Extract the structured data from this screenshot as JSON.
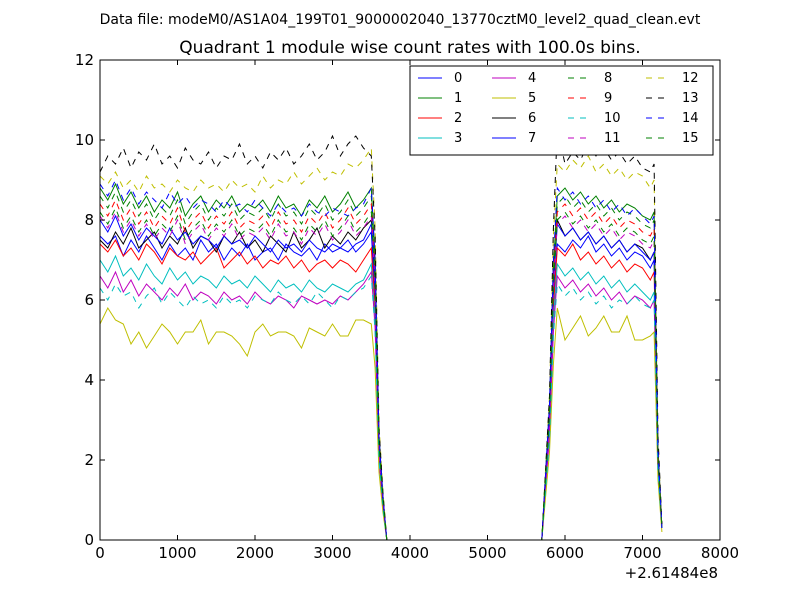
{
  "figure": {
    "suptitle": "Data file: modeM0/AS1A04_199T01_9000002040_13770cztM0_level2_quad_clean.evt"
  },
  "chart_data": {
    "type": "line",
    "title": "Quadrant 1 module wise count rates with 100.0s bins.",
    "xlabel": "",
    "ylabel": "",
    "x_offset_label": "+2.61484e8",
    "xlim": [
      0,
      8000
    ],
    "ylim": [
      0,
      12
    ],
    "xticks": [
      0,
      1000,
      2000,
      3000,
      4000,
      5000,
      6000,
      7000,
      8000
    ],
    "yticks": [
      0,
      2,
      4,
      6,
      8,
      10,
      12
    ],
    "grid": false,
    "legend_position": "top-right",
    "legend_columns": 4,
    "x": [
      0,
      100,
      200,
      300,
      400,
      500,
      600,
      700,
      800,
      900,
      1000,
      1100,
      1200,
      1300,
      1400,
      1500,
      1600,
      1700,
      1800,
      1900,
      2000,
      2100,
      2200,
      2300,
      2400,
      2500,
      2600,
      2700,
      2800,
      2900,
      3000,
      3100,
      3200,
      3300,
      3400,
      3500,
      3550,
      3600,
      3650,
      3700,
      3800,
      4000,
      5000,
      5700,
      5800,
      5850,
      5900,
      6000,
      6100,
      6200,
      6300,
      6400,
      6500,
      6600,
      6700,
      6800,
      6900,
      7000,
      7100,
      7150,
      7200,
      7250
    ],
    "series": [
      {
        "name": "0",
        "color": "#0000ff",
        "dash": "solid",
        "values": [
          7.6,
          7.4,
          7.6,
          7.1,
          7.5,
          7.2,
          7.6,
          7.3,
          7.0,
          7.4,
          7.1,
          7.3,
          7.0,
          7.5,
          7.2,
          7.4,
          7.0,
          7.3,
          7.1,
          7.4,
          7.0,
          7.2,
          7.3,
          7.0,
          7.4,
          7.2,
          7.1,
          7.3,
          7.0,
          7.4,
          7.2,
          7.3,
          7.5,
          7.2,
          7.4,
          7.7,
          6.0,
          2.3,
          1.0,
          0,
          0,
          0,
          0,
          0,
          3.0,
          6.0,
          7.4,
          7.2,
          7.5,
          7.3,
          7.6,
          7.2,
          7.4,
          7.1,
          7.3,
          7.0,
          7.2,
          7.1,
          6.8,
          7.0,
          2.0,
          0.3
        ]
      },
      {
        "name": "1",
        "color": "#008000",
        "dash": "solid",
        "values": [
          8.8,
          8.5,
          8.9,
          8.4,
          8.7,
          8.3,
          8.6,
          8.2,
          8.5,
          8.3,
          8.7,
          8.1,
          8.4,
          8.6,
          8.2,
          8.5,
          8.3,
          8.6,
          8.2,
          8.4,
          8.3,
          8.5,
          8.2,
          8.6,
          8.3,
          8.4,
          8.1,
          8.5,
          8.3,
          8.6,
          8.2,
          8.4,
          8.7,
          8.3,
          8.5,
          8.8,
          7.0,
          2.6,
          1.1,
          0,
          0,
          0,
          0,
          0,
          3.3,
          6.8,
          8.6,
          8.8,
          8.5,
          8.7,
          8.4,
          8.6,
          8.3,
          8.5,
          8.2,
          8.4,
          8.3,
          8.1,
          8.0,
          8.2,
          2.3,
          0.3
        ]
      },
      {
        "name": "2",
        "color": "#ff0000",
        "dash": "solid",
        "values": [
          7.4,
          7.2,
          7.5,
          7.1,
          7.3,
          7.0,
          7.4,
          7.2,
          6.9,
          7.3,
          7.1,
          7.0,
          7.2,
          6.9,
          7.1,
          7.3,
          6.8,
          7.0,
          7.2,
          6.9,
          7.1,
          6.8,
          7.0,
          6.9,
          7.1,
          6.8,
          7.0,
          6.7,
          6.9,
          7.0,
          6.8,
          7.0,
          6.9,
          6.7,
          7.0,
          7.3,
          5.8,
          2.2,
          0.9,
          0,
          0,
          0,
          0,
          0,
          2.9,
          5.8,
          7.3,
          7.1,
          7.4,
          7.0,
          7.2,
          6.9,
          7.1,
          6.8,
          7.0,
          6.7,
          6.9,
          6.8,
          6.5,
          6.7,
          1.9,
          0.3
        ]
      },
      {
        "name": "3",
        "color": "#00bfbf",
        "dash": "solid",
        "values": [
          7.0,
          6.7,
          7.1,
          6.6,
          6.8,
          6.5,
          6.9,
          6.6,
          6.4,
          6.8,
          6.5,
          6.7,
          6.4,
          6.6,
          6.5,
          6.3,
          6.6,
          6.4,
          6.5,
          6.3,
          6.6,
          6.4,
          6.2,
          6.5,
          6.3,
          6.4,
          6.2,
          6.5,
          6.3,
          6.2,
          6.4,
          6.3,
          6.2,
          6.4,
          6.5,
          6.9,
          5.5,
          2.1,
          0.9,
          0,
          0,
          0,
          0,
          0,
          2.7,
          5.5,
          6.9,
          6.6,
          6.8,
          6.5,
          6.7,
          6.4,
          6.6,
          6.3,
          6.5,
          6.2,
          6.4,
          6.2,
          6.0,
          6.2,
          1.8,
          0.3
        ]
      },
      {
        "name": "4",
        "color": "#bf00bf",
        "dash": "solid",
        "values": [
          6.6,
          6.3,
          6.7,
          6.2,
          6.5,
          6.1,
          6.4,
          6.2,
          6.0,
          6.3,
          6.1,
          6.4,
          6.0,
          6.2,
          6.1,
          5.9,
          6.2,
          6.0,
          6.1,
          5.9,
          6.2,
          6.0,
          5.9,
          6.1,
          6.0,
          5.8,
          6.1,
          6.0,
          5.9,
          6.0,
          5.9,
          6.1,
          6.0,
          6.2,
          6.4,
          6.7,
          5.3,
          2.0,
          0.8,
          0,
          0,
          0,
          0,
          0,
          2.6,
          5.2,
          6.6,
          6.3,
          6.5,
          6.2,
          6.4,
          6.1,
          6.3,
          6.0,
          6.2,
          5.9,
          6.1,
          6.0,
          5.8,
          6.0,
          1.7,
          0.3
        ]
      },
      {
        "name": "5",
        "color": "#bfbf00",
        "dash": "solid",
        "values": [
          5.4,
          5.8,
          5.5,
          5.4,
          4.9,
          5.2,
          4.8,
          5.1,
          5.4,
          5.2,
          4.9,
          5.2,
          5.2,
          5.5,
          4.9,
          5.2,
          5.2,
          5.1,
          4.9,
          4.6,
          5.2,
          5.4,
          5.1,
          5.2,
          5.2,
          5.1,
          4.8,
          5.3,
          5.2,
          5.1,
          5.4,
          5.1,
          5.1,
          5.5,
          5.5,
          5.4,
          4.3,
          1.7,
          0.7,
          0,
          0,
          0,
          0,
          0,
          2.2,
          4.4,
          5.8,
          5.0,
          5.3,
          5.6,
          5.1,
          5.3,
          5.6,
          5.2,
          5.2,
          5.6,
          5.0,
          5.0,
          5.1,
          5.2,
          1.5,
          0.2
        ]
      },
      {
        "name": "6",
        "color": "#000000",
        "dash": "solid",
        "values": [
          7.5,
          7.3,
          7.7,
          7.4,
          7.8,
          7.3,
          7.5,
          7.7,
          7.3,
          7.6,
          7.4,
          7.8,
          7.3,
          7.6,
          7.5,
          7.2,
          7.6,
          7.4,
          7.7,
          7.3,
          7.5,
          7.2,
          7.6,
          7.4,
          7.2,
          7.7,
          7.3,
          7.5,
          7.8,
          7.3,
          7.6,
          7.4,
          7.7,
          7.5,
          7.8,
          8.0,
          6.4,
          2.4,
          1.0,
          0,
          0,
          0,
          0,
          0,
          3.1,
          6.4,
          8.0,
          7.6,
          7.8,
          7.5,
          7.7,
          7.4,
          7.6,
          7.3,
          7.5,
          7.2,
          7.4,
          7.3,
          7.0,
          7.2,
          2.0,
          0.3
        ]
      },
      {
        "name": "7",
        "color": "#0000ff",
        "dash": "solid",
        "values": [
          8.0,
          7.7,
          8.1,
          7.6,
          7.9,
          7.5,
          7.8,
          7.6,
          7.4,
          7.8,
          7.5,
          7.7,
          7.4,
          7.6,
          7.5,
          7.3,
          7.6,
          7.4,
          7.5,
          7.3,
          7.6,
          7.4,
          7.2,
          7.5,
          7.3,
          7.4,
          7.2,
          7.5,
          7.3,
          7.2,
          7.4,
          7.3,
          7.2,
          7.4,
          7.5,
          7.9,
          6.3,
          2.4,
          1.0,
          0,
          0,
          0,
          0,
          0,
          3.1,
          6.3,
          7.9,
          7.6,
          7.8,
          7.5,
          7.7,
          7.4,
          7.6,
          7.3,
          7.5,
          7.2,
          7.4,
          7.2,
          7.0,
          7.2,
          2.0,
          0.3
        ]
      },
      {
        "name": "8",
        "color": "#008000",
        "dash": "dashed",
        "values": [
          8.6,
          8.3,
          8.7,
          8.2,
          8.5,
          8.1,
          8.4,
          8.0,
          8.3,
          8.1,
          8.5,
          7.9,
          8.2,
          8.4,
          8.0,
          8.3,
          8.1,
          8.4,
          8.0,
          8.2,
          8.1,
          8.3,
          8.0,
          8.4,
          8.1,
          8.2,
          7.9,
          8.3,
          8.1,
          8.4,
          8.0,
          8.2,
          8.5,
          8.1,
          8.3,
          8.6,
          6.8,
          2.5,
          1.1,
          0,
          0,
          0,
          0,
          0,
          3.2,
          6.6,
          8.4,
          8.6,
          8.3,
          8.5,
          8.2,
          8.4,
          8.1,
          8.3,
          8.0,
          8.2,
          8.1,
          7.9,
          7.8,
          8.0,
          2.2,
          0.3
        ]
      },
      {
        "name": "9",
        "color": "#ff0000",
        "dash": "dashed",
        "values": [
          8.4,
          8.1,
          8.5,
          8.0,
          8.3,
          7.9,
          8.2,
          7.8,
          8.1,
          7.9,
          8.3,
          7.7,
          8.0,
          8.2,
          7.8,
          8.1,
          7.9,
          8.2,
          7.8,
          8.0,
          7.9,
          8.1,
          7.8,
          8.2,
          7.9,
          8.0,
          7.7,
          8.1,
          7.9,
          8.2,
          7.8,
          8.0,
          8.3,
          7.9,
          8.1,
          8.4,
          6.6,
          2.5,
          1.0,
          0,
          0,
          0,
          0,
          0,
          3.1,
          6.5,
          8.2,
          8.4,
          8.1,
          8.3,
          8.0,
          8.2,
          7.9,
          8.1,
          7.8,
          8.0,
          7.9,
          7.7,
          7.6,
          7.8,
          2.2,
          0.3
        ]
      },
      {
        "name": "10",
        "color": "#00bfbf",
        "dash": "dashed",
        "values": [
          6.3,
          6.0,
          6.4,
          6.1,
          6.2,
          5.8,
          6.1,
          6.3,
          5.9,
          6.2,
          6.0,
          5.8,
          6.1,
          5.9,
          6.0,
          5.8,
          6.1,
          5.9,
          6.0,
          5.8,
          6.1,
          6.0,
          5.9,
          6.2,
          6.0,
          5.9,
          6.1,
          5.9,
          6.2,
          6.0,
          5.8,
          6.1,
          6.0,
          6.2,
          6.3,
          6.6,
          5.2,
          2.0,
          0.8,
          0,
          0,
          0,
          0,
          0,
          2.5,
          5.1,
          6.4,
          6.1,
          6.3,
          6.0,
          6.2,
          5.9,
          6.1,
          5.8,
          6.0,
          5.9,
          6.1,
          5.9,
          5.8,
          6.0,
          1.7,
          0.3
        ]
      },
      {
        "name": "11",
        "color": "#bf00bf",
        "dash": "dashed",
        "values": [
          8.1,
          7.8,
          8.2,
          7.7,
          8.0,
          7.6,
          7.9,
          7.5,
          7.8,
          7.6,
          8.0,
          7.4,
          7.7,
          7.9,
          7.5,
          7.8,
          7.6,
          7.9,
          7.5,
          7.7,
          7.6,
          7.8,
          7.5,
          7.9,
          7.6,
          7.7,
          7.4,
          7.8,
          7.6,
          7.9,
          7.5,
          7.7,
          8.0,
          7.6,
          7.8,
          8.1,
          6.4,
          2.4,
          1.0,
          0,
          0,
          0,
          0,
          0,
          3.0,
          6.3,
          7.9,
          8.1,
          7.8,
          8.0,
          7.7,
          7.9,
          7.6,
          7.8,
          7.5,
          7.7,
          7.6,
          7.4,
          7.3,
          7.5,
          2.1,
          0.3
        ]
      },
      {
        "name": "12",
        "color": "#bfbf00",
        "dash": "dashed",
        "values": [
          9.1,
          8.9,
          9.2,
          8.8,
          9.0,
          8.7,
          9.1,
          8.8,
          8.9,
          8.7,
          9.0,
          8.8,
          8.7,
          9.0,
          8.8,
          8.9,
          8.7,
          9.0,
          8.8,
          8.9,
          8.7,
          9.1,
          8.8,
          9.0,
          8.9,
          9.2,
          8.9,
          9.1,
          9.3,
          9.0,
          9.2,
          9.1,
          9.4,
          9.3,
          9.5,
          9.8,
          7.8,
          2.9,
          1.2,
          0,
          0,
          0,
          0,
          0,
          3.6,
          7.6,
          9.4,
          9.2,
          9.5,
          9.3,
          9.6,
          9.2,
          9.4,
          9.1,
          9.3,
          9.0,
          9.2,
          9.1,
          8.8,
          9.0,
          2.5,
          0.3
        ]
      },
      {
        "name": "13",
        "color": "#000000",
        "dash": "dashed",
        "values": [
          9.2,
          9.6,
          9.4,
          9.8,
          9.3,
          9.7,
          9.5,
          9.9,
          9.4,
          9.6,
          9.3,
          9.8,
          9.5,
          9.4,
          9.7,
          9.3,
          9.6,
          9.5,
          9.9,
          9.4,
          9.6,
          9.3,
          9.7,
          9.5,
          9.8,
          9.4,
          9.6,
          9.9,
          9.5,
          9.7,
          10.1,
          9.6,
          9.9,
          10.1,
          9.8,
          9.6,
          7.6,
          2.8,
          1.2,
          0,
          0,
          0,
          0,
          0,
          3.6,
          7.8,
          10.3,
          9.4,
          9.7,
          9.5,
          9.9,
          9.6,
          9.8,
          9.5,
          9.7,
          9.4,
          9.6,
          9.3,
          9.2,
          9.4,
          2.6,
          0.4
        ]
      },
      {
        "name": "14",
        "color": "#0000ff",
        "dash": "dashed",
        "values": [
          8.9,
          8.6,
          9.0,
          8.5,
          8.8,
          8.4,
          8.7,
          8.5,
          8.3,
          8.7,
          8.4,
          8.6,
          8.3,
          8.5,
          8.4,
          8.2,
          8.5,
          8.3,
          8.4,
          8.2,
          8.5,
          8.3,
          8.1,
          8.4,
          8.2,
          8.3,
          8.1,
          8.4,
          8.2,
          8.1,
          8.3,
          8.2,
          8.1,
          8.3,
          8.4,
          8.8,
          7.0,
          2.6,
          1.1,
          0,
          0,
          0,
          0,
          0,
          3.4,
          7.0,
          8.8,
          8.5,
          8.7,
          8.4,
          8.6,
          8.3,
          8.5,
          8.2,
          8.4,
          8.1,
          8.3,
          8.1,
          7.9,
          8.1,
          2.3,
          0.3
        ]
      },
      {
        "name": "15",
        "color": "#008000",
        "dash": "dashed",
        "values": [
          8.2,
          7.9,
          8.3,
          7.8,
          8.1,
          7.7,
          8.0,
          7.6,
          7.9,
          7.7,
          8.1,
          7.5,
          7.8,
          8.0,
          7.6,
          7.9,
          7.7,
          8.0,
          7.6,
          7.8,
          7.7,
          7.9,
          7.6,
          8.0,
          7.7,
          7.8,
          7.5,
          7.9,
          7.7,
          8.0,
          7.6,
          7.8,
          8.1,
          7.7,
          7.9,
          8.2,
          6.5,
          2.4,
          1.0,
          0,
          0,
          0,
          0,
          0,
          3.1,
          6.4,
          8.0,
          8.2,
          7.9,
          8.1,
          7.8,
          8.0,
          7.7,
          7.9,
          7.6,
          7.8,
          7.7,
          7.5,
          7.4,
          7.6,
          2.1,
          0.3
        ]
      }
    ]
  }
}
